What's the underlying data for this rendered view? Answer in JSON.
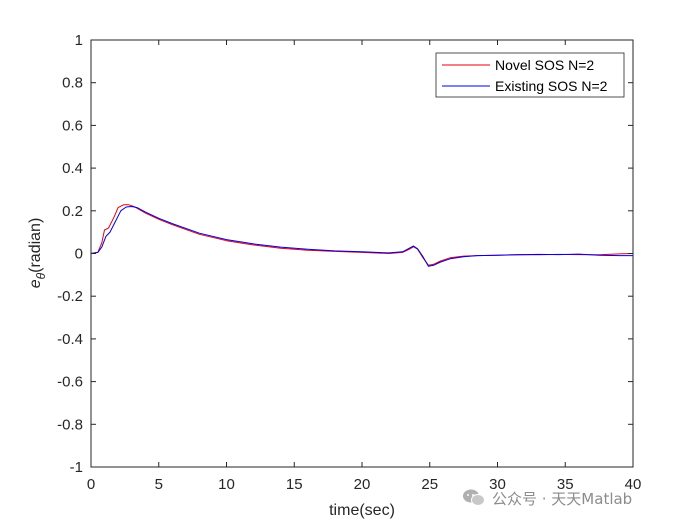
{
  "chart_data": {
    "type": "line",
    "xlabel": "time(sec)",
    "ylabel_symbol": "e",
    "ylabel_subscript": "θ",
    "ylabel_rest": "(radian)",
    "xlim": [
      0,
      40
    ],
    "ylim": [
      -1,
      1
    ],
    "xticks": [
      0,
      5,
      10,
      15,
      20,
      25,
      30,
      35,
      40
    ],
    "yticks": [
      -1,
      -0.8,
      -0.6,
      -0.4,
      -0.2,
      0,
      0.2,
      0.4,
      0.6,
      0.8,
      1
    ],
    "grid": false,
    "box": true,
    "legend_position": "top-right",
    "series": [
      {
        "name": "Novel SOS N=2",
        "color": "#e8000b",
        "x": [
          0,
          0.5,
          0.8,
          1.0,
          1.3,
          1.7,
          2.0,
          2.4,
          2.8,
          3.2,
          4,
          5,
          6,
          8,
          10,
          12,
          14,
          16,
          18,
          20,
          22,
          23.0,
          23.5,
          23.8,
          24.1,
          24.5,
          24.9,
          25.3,
          25.8,
          26.5,
          27.5,
          28.5,
          30,
          31.5,
          33,
          34.5,
          36,
          37.5,
          39,
          40
        ],
        "y": [
          0,
          0.005,
          0.05,
          0.11,
          0.12,
          0.17,
          0.215,
          0.228,
          0.228,
          0.219,
          0.19,
          0.16,
          0.135,
          0.09,
          0.06,
          0.04,
          0.025,
          0.015,
          0.01,
          0.005,
          0.0,
          0.005,
          0.02,
          0.032,
          0.02,
          -0.02,
          -0.055,
          -0.05,
          -0.035,
          -0.02,
          -0.012,
          -0.01,
          -0.008,
          -0.005,
          -0.006,
          -0.004,
          -0.005,
          -0.006,
          -0.002,
          0.0
        ]
      },
      {
        "name": "Existing SOS N=2",
        "color": "#0000e8",
        "x": [
          0,
          0.5,
          0.8,
          1.1,
          1.4,
          1.8,
          2.2,
          2.6,
          3.0,
          3.4,
          4,
          5,
          6,
          8,
          10,
          12,
          14,
          16,
          18,
          20,
          22,
          23.0,
          23.5,
          23.8,
          24.1,
          24.5,
          24.9,
          25.3,
          25.8,
          26.5,
          27.5,
          28.5,
          30,
          31.5,
          33,
          34.5,
          36,
          37.5,
          39,
          40
        ],
        "y": [
          0,
          0.005,
          0.03,
          0.08,
          0.1,
          0.15,
          0.2,
          0.218,
          0.22,
          0.215,
          0.195,
          0.165,
          0.14,
          0.095,
          0.065,
          0.045,
          0.03,
          0.02,
          0.012,
          0.008,
          0.003,
          0.008,
          0.025,
          0.035,
          0.022,
          -0.015,
          -0.06,
          -0.055,
          -0.04,
          -0.025,
          -0.015,
          -0.01,
          -0.008,
          -0.006,
          -0.004,
          -0.005,
          -0.003,
          -0.008,
          -0.01,
          -0.01
        ]
      }
    ]
  },
  "watermark": {
    "text": "公众号 · 天天Matlab",
    "icon": "wechat-logo-icon"
  }
}
